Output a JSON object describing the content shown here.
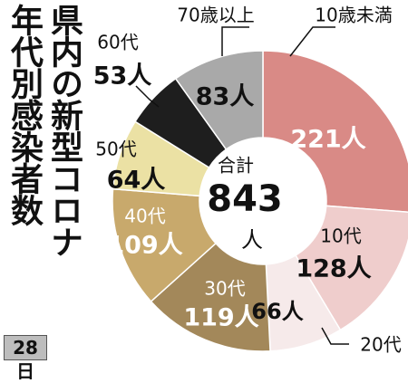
{
  "chart_data": {
    "type": "donut",
    "title": [
      "県内の新型コロナ",
      "年代別感染者数"
    ],
    "categories": [
      "10歳未満",
      "10代",
      "20代",
      "30代",
      "40代",
      "50代",
      "60代",
      "70歳以上"
    ],
    "values": [
      221,
      128,
      66,
      119,
      109,
      64,
      53,
      83
    ],
    "value_labels": [
      "221人",
      "128人",
      "66人",
      "119人",
      "109人",
      "64人",
      "53人",
      "83人"
    ],
    "colors": [
      "#d98a86",
      "#efcdcc",
      "#f6eaea",
      "#a3885a",
      "#c8a96c",
      "#ebe1a4",
      "#1e1e1e",
      "#a9a9a9"
    ],
    "total_label": "合計",
    "total": 843,
    "total_unit": "人",
    "date": "28日"
  }
}
